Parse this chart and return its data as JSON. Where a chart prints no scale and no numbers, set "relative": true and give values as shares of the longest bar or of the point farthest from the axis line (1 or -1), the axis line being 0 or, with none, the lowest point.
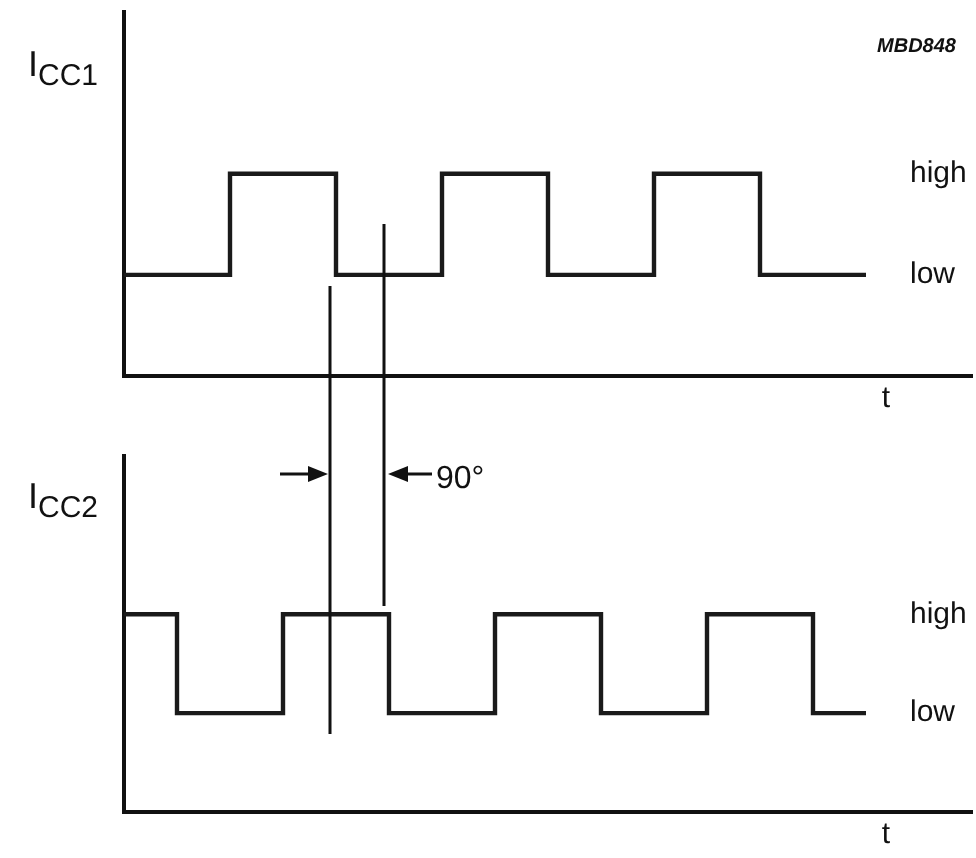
{
  "chart_data": [
    {
      "type": "step",
      "ylabel": "I$_{CC1}$",
      "xlabel": "t",
      "relative": true,
      "legend": false,
      "color": "#1a1a1a",
      "categories": [
        null,
        null,
        null,
        null,
        null,
        null,
        null,
        null,
        null,
        null,
        null,
        null,
        null,
        null,
        null,
        null,
        null
      ],
      "values": [
        0.5,
        0.5,
        1,
        1,
        0.5,
        0.5,
        1,
        1,
        0.5,
        0.5,
        1,
        1,
        0.5,
        0.5,
        0.5,
        null,
        null
      ],
      "annotations": [
        "high",
        "low",
        "MBD848"
      ]
    },
    {
      "type": "step",
      "ylabel": "I$_{CC2}$",
      "xlabel": "t",
      "relative": true,
      "legend": false,
      "color": "#1a1a1a",
      "categories": [
        null,
        null,
        null,
        null,
        null,
        null,
        null,
        null,
        null,
        null,
        null,
        null,
        null,
        null,
        null,
        null,
        null
      ],
      "values": [
        1,
        0.5,
        0.5,
        1,
        1,
        0.5,
        0.5,
        1,
        1,
        0.5,
        0.5,
        1,
        1,
        0.5,
        0.5,
        null,
        null
      ],
      "annotations": [
        "high",
        "low",
        "90°"
      ]
    }
  ]
}
